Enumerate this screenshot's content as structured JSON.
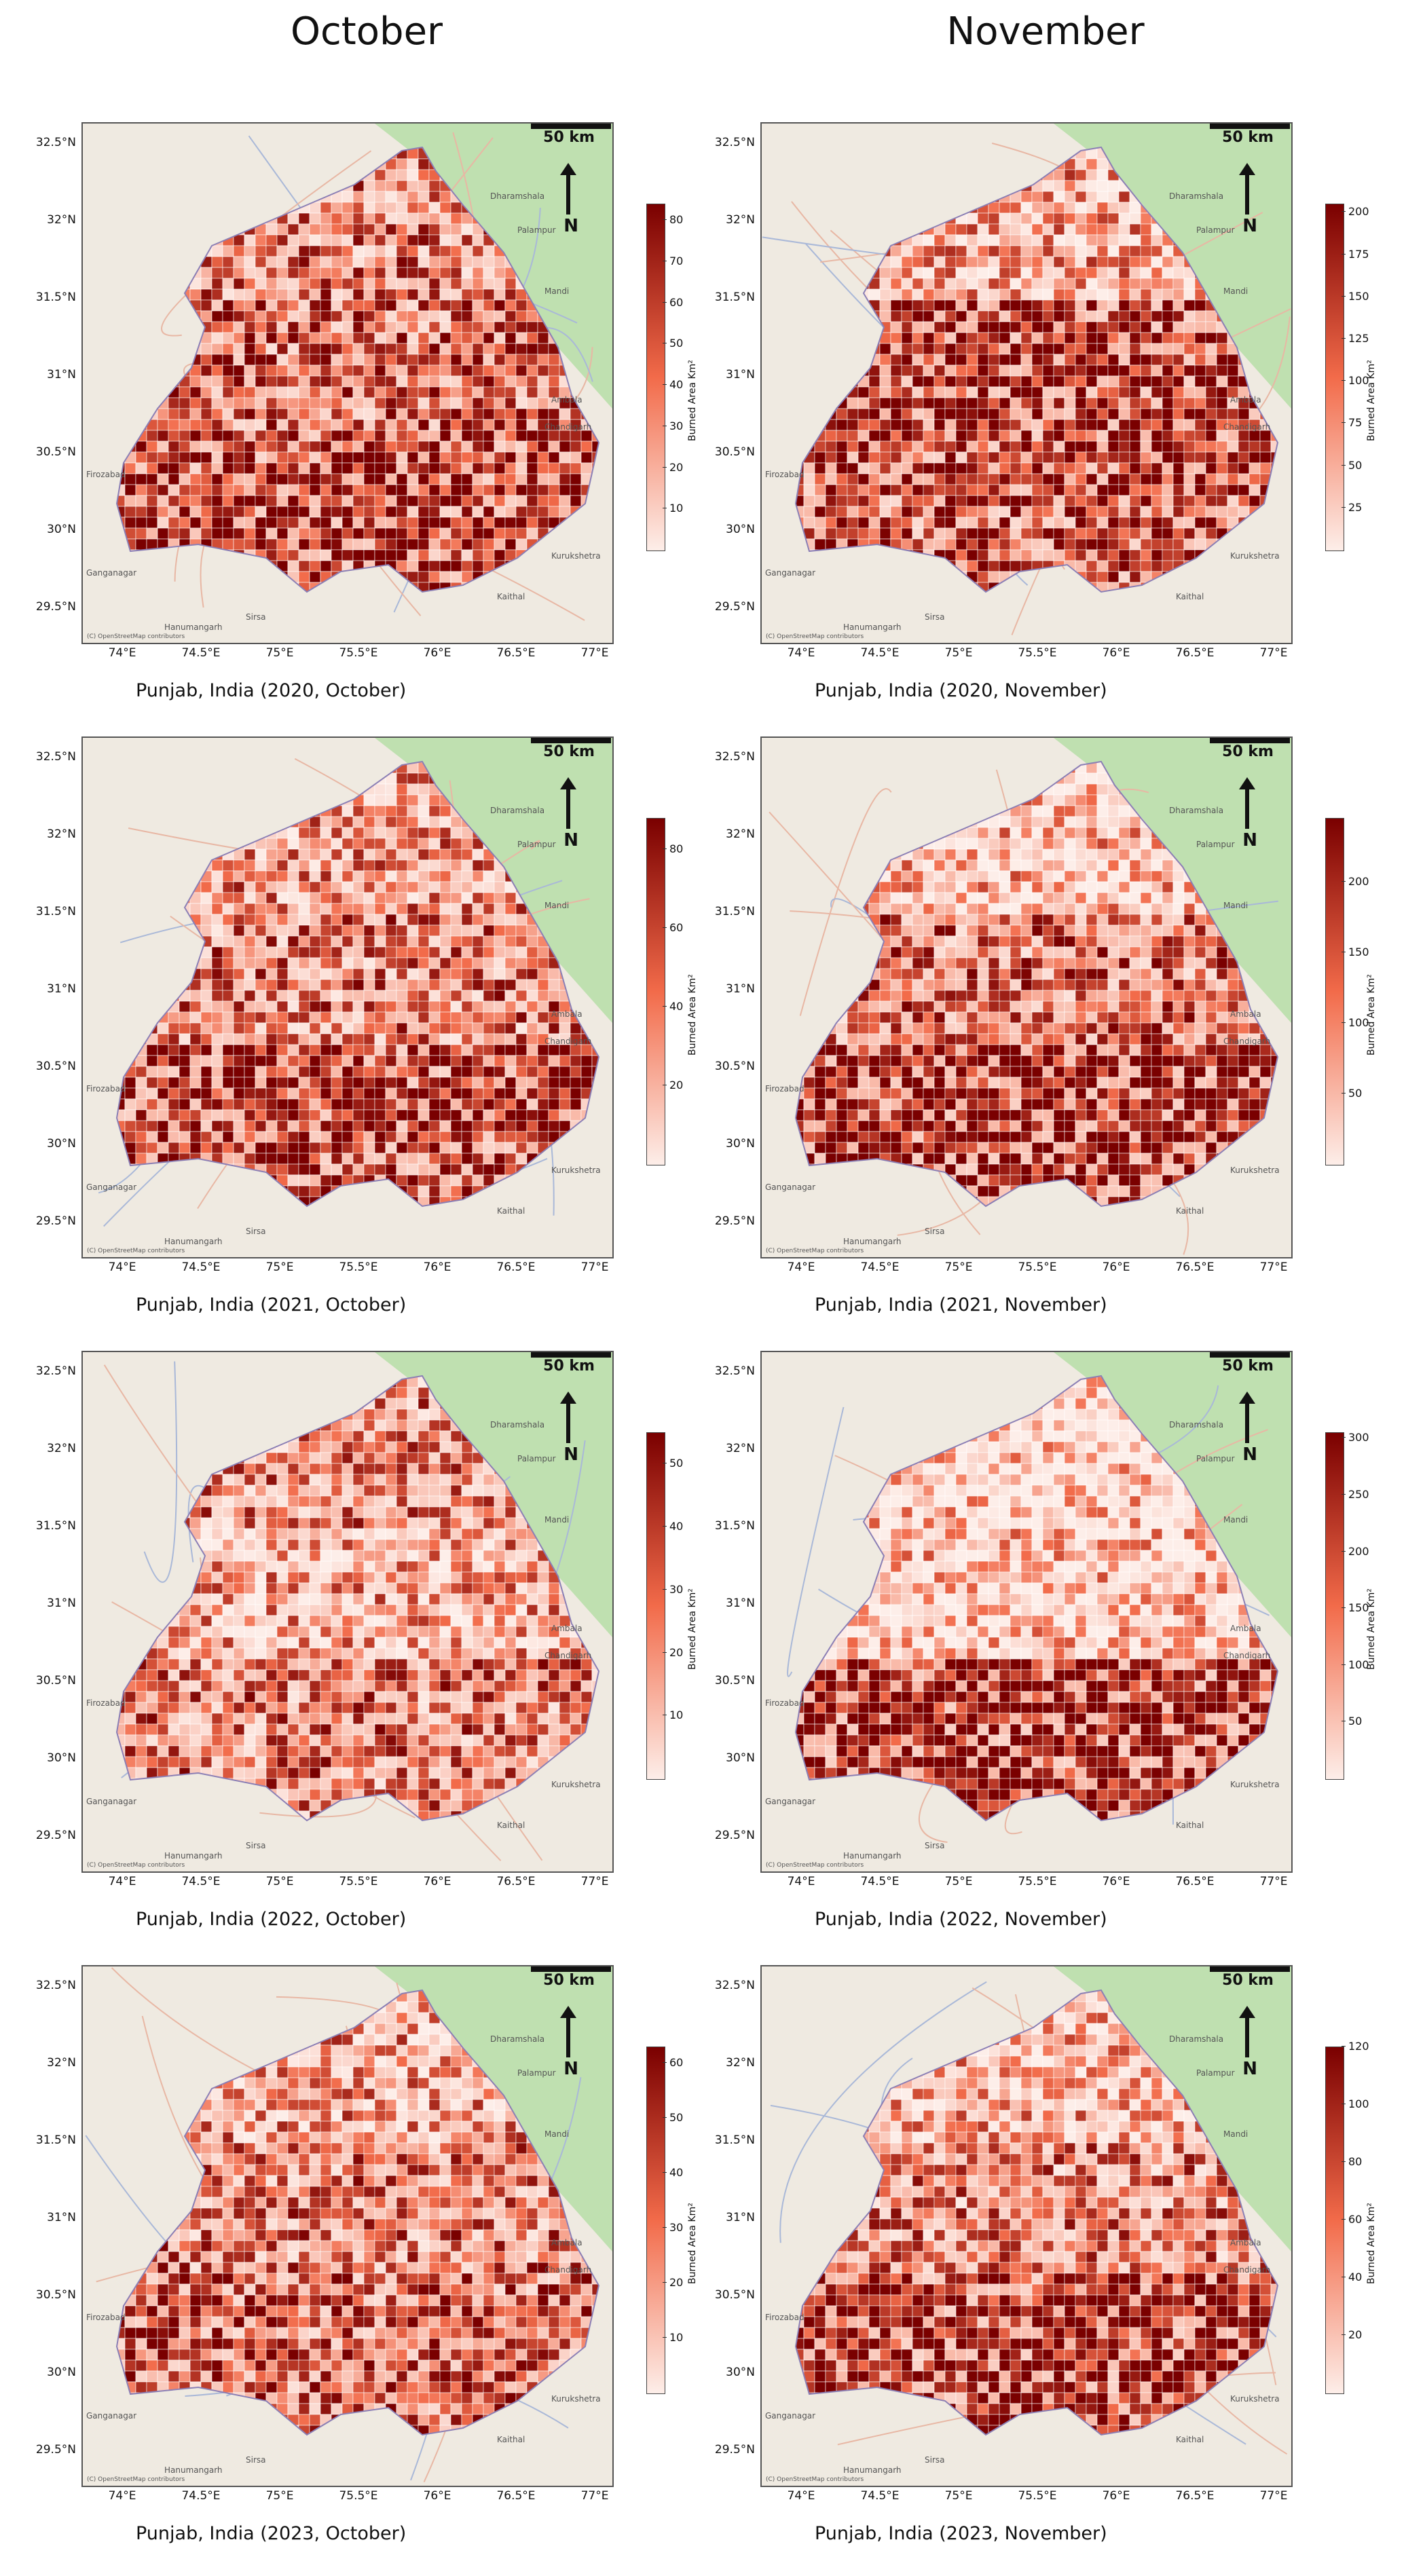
{
  "column_titles": [
    "October",
    "November"
  ],
  "map_labels": {
    "scale": "50 km",
    "north": "N",
    "attribution": "(C) OpenStreetMap contributors",
    "colorbar_label": "Burned Area Km²",
    "y_ticks": [
      "32.5°N",
      "32°N",
      "31.5°N",
      "31°N",
      "30.5°N",
      "30°N",
      "29.5°N"
    ],
    "x_ticks": [
      "74°E",
      "74.5°E",
      "75°E",
      "75.5°E",
      "76°E",
      "76.5°E",
      "77°E"
    ],
    "places": [
      "Dharamshala",
      "Palampur",
      "Mandi",
      "Chandigarh",
      "Kurukshetra",
      "Kaithal",
      "Ganganagar",
      "Hanumangarh",
      "Sirsa",
      "Firozabad",
      "Ambala"
    ]
  },
  "colors": {
    "low": "#fdeee9",
    "mid": "#f26b4a",
    "high": "#7a0000",
    "hills": "#bfe0b0",
    "base": "#efeae1"
  },
  "panels": [
    {
      "caption": "Punjab, India (2020, October)",
      "cbar_ticks": [
        "10",
        "20",
        "30",
        "40",
        "50",
        "60",
        "70",
        "80"
      ],
      "cbar_max": 84,
      "intensity": [
        0.55,
        0.7,
        0.85
      ]
    },
    {
      "caption": "Punjab, India (2020, November)",
      "cbar_ticks": [
        "25",
        "50",
        "75",
        "100",
        "125",
        "150",
        "175",
        "200"
      ],
      "cbar_max": 205,
      "intensity": [
        0.35,
        0.9,
        0.8
      ]
    },
    {
      "caption": "Punjab, India (2021, October)",
      "cbar_ticks": [
        "20",
        "40",
        "60",
        "80"
      ],
      "cbar_max": 88,
      "intensity": [
        0.45,
        0.55,
        0.9
      ]
    },
    {
      "caption": "Punjab, India (2021, November)",
      "cbar_ticks": [
        "50",
        "100",
        "150",
        "200"
      ],
      "cbar_max": 245,
      "intensity": [
        0.25,
        0.6,
        0.95
      ]
    },
    {
      "caption": "Punjab, India (2022, October)",
      "cbar_ticks": [
        "10",
        "20",
        "30",
        "40",
        "50"
      ],
      "cbar_max": 55,
      "intensity": [
        0.5,
        0.35,
        0.55
      ]
    },
    {
      "caption": "Punjab, India (2022, November)",
      "cbar_ticks": [
        "50",
        "100",
        "150",
        "200",
        "250",
        "300"
      ],
      "cbar_max": 305,
      "intensity": [
        0.15,
        0.2,
        0.95
      ]
    },
    {
      "caption": "Punjab, India (2023, October)",
      "cbar_ticks": [
        "10",
        "20",
        "30",
        "40",
        "50",
        "60"
      ],
      "cbar_max": 63,
      "intensity": [
        0.4,
        0.55,
        0.7
      ]
    },
    {
      "caption": "Punjab, India (2023, November)",
      "cbar_ticks": [
        "20",
        "40",
        "60",
        "80",
        "100",
        "120"
      ],
      "cbar_max": 120,
      "intensity": [
        0.3,
        0.5,
        0.9
      ]
    }
  ]
}
